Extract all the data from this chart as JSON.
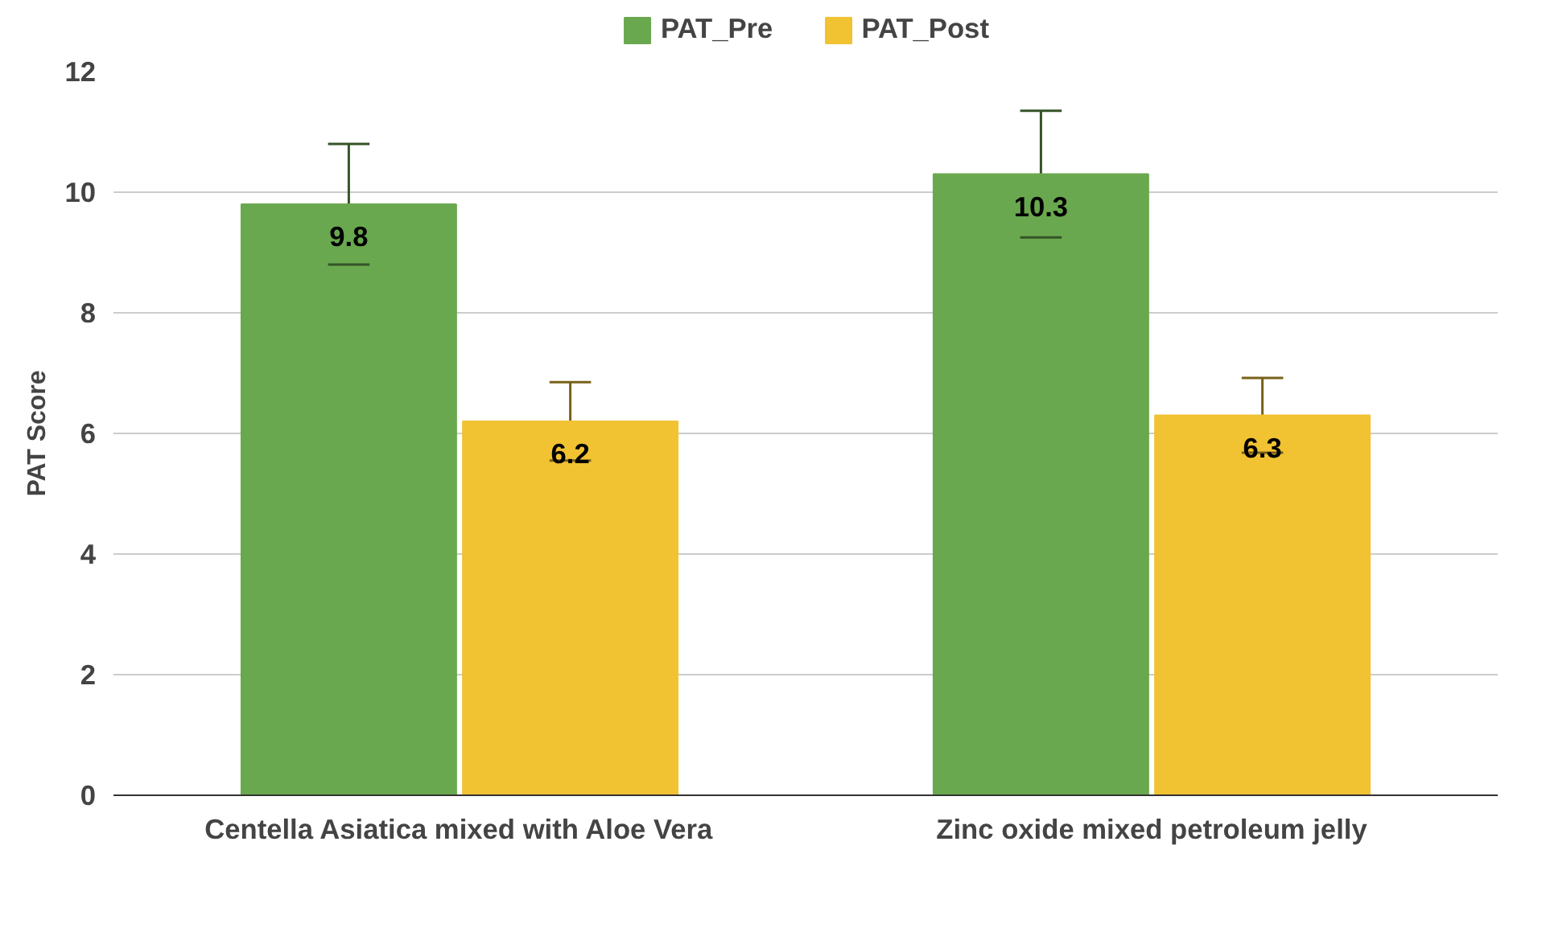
{
  "chart_data": {
    "type": "bar",
    "ylabel": "PAT Score",
    "categories": [
      "Centella Asiatica mixed with Aloe Vera",
      "Zinc oxide mixed petroleum jelly"
    ],
    "series": [
      {
        "name": "PAT_Pre",
        "color": "#6aa84f",
        "values": [
          9.8,
          10.3
        ],
        "errors": [
          1.0,
          1.05
        ]
      },
      {
        "name": "PAT_Post",
        "color": "#f1c232",
        "values": [
          6.2,
          6.3
        ],
        "errors": [
          0.65,
          0.62
        ]
      }
    ],
    "ylim": [
      0,
      12
    ],
    "yticks": [
      0,
      2,
      4,
      6,
      8,
      10,
      12
    ],
    "grid": "y",
    "legend": "top",
    "data_labels": true
  }
}
